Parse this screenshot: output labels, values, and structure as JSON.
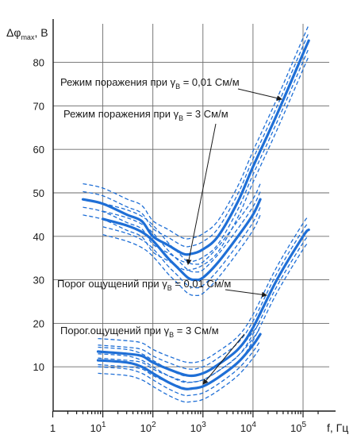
{
  "chart_data": {
    "type": "line",
    "title": "",
    "ylabel_main": "Δφ",
    "ylabel_sub": "max",
    "ylabel_unit": ", В",
    "xlabel": "f, Гц",
    "x_scale": "log",
    "xlim": [
      1,
      200000
    ],
    "ylim": [
      0,
      85
    ],
    "yticks": [
      10,
      20,
      30,
      40,
      50,
      60,
      70,
      80
    ],
    "ytick_labels": [
      "10",
      "20",
      "30",
      "40",
      "50",
      "60",
      "70",
      "80"
    ],
    "xticks": [
      1,
      10,
      100,
      1000,
      10000,
      100000
    ],
    "xtick_labels": [
      {
        "base": "1",
        "exp": ""
      },
      {
        "base": "10",
        "exp": "1"
      },
      {
        "base": "10",
        "exp": "2"
      },
      {
        "base": "10",
        "exp": "3"
      },
      {
        "base": "10",
        "exp": "4"
      },
      {
        "base": "10",
        "exp": "5"
      }
    ],
    "grid": true,
    "color": "#1f6fd6",
    "series": [
      {
        "x": [
          4,
          10,
          30,
          60,
          100,
          200,
          400,
          600,
          1000,
          2000,
          5000,
          10000,
          30000,
          100000,
          130000
        ],
        "y": [
          48.5,
          47.5,
          45,
          43.5,
          40,
          38,
          36,
          36,
          37,
          40,
          48,
          56,
          68,
          82,
          85
        ],
        "spread": 1.8
      },
      {
        "x": [
          10,
          30,
          60,
          100,
          200,
          300,
          500,
          700,
          1000,
          2000,
          5000,
          10000,
          14000
        ],
        "y": [
          44,
          42.5,
          41,
          39,
          35,
          33,
          30.5,
          30,
          30.5,
          34,
          40,
          45,
          48.5
        ],
        "spread": 1.8
      },
      {
        "x": [
          8,
          30,
          60,
          100,
          200,
          500,
          1000,
          2000,
          5000,
          10000,
          30000,
          100000,
          130000
        ],
        "y": [
          13.5,
          13,
          12.5,
          11,
          9.5,
          8,
          8.5,
          10.5,
          14,
          19,
          30,
          40,
          41.5
        ],
        "spread": 1.5
      },
      {
        "x": [
          8,
          30,
          60,
          100,
          200,
          400,
          600,
          1000,
          2000,
          5000,
          10000,
          14000
        ],
        "y": [
          11.5,
          11,
          10,
          8.5,
          6.5,
          5,
          5,
          5.5,
          7.5,
          11,
          15,
          17.5
        ],
        "spread": 1.5
      }
    ],
    "annotations": [
      {
        "pre": "Режим поражения при γ",
        "sub": "В",
        "post": " = 0,01 См/м"
      },
      {
        "pre": "Режим поражения при γ",
        "sub": "В",
        "post": " = 3 См/м"
      },
      {
        "pre": "Порог ощущений при γ",
        "sub": "В",
        "post": " = 0,01 См/м"
      },
      {
        "pre": "Порог.ощущений при γ",
        "sub": "В",
        "post": " = 3 См/м"
      }
    ]
  }
}
